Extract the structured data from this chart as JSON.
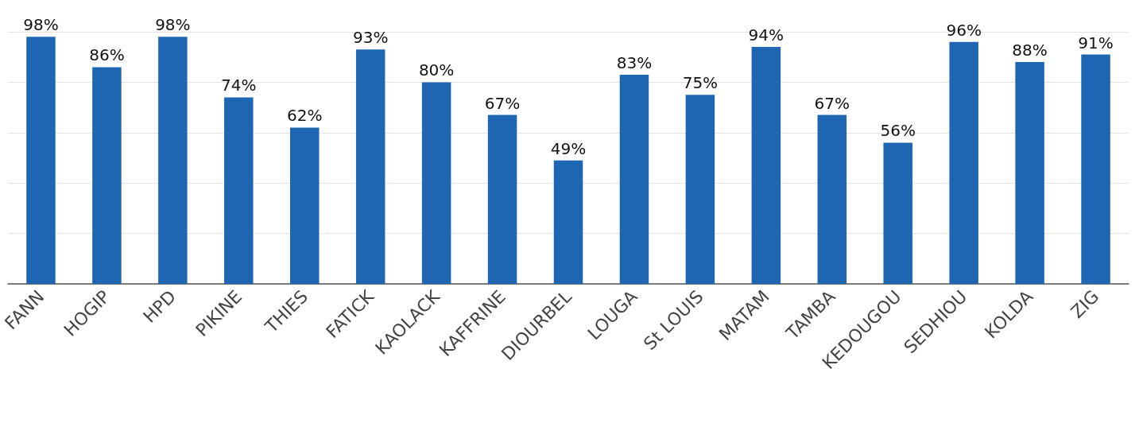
{
  "chart_data": {
    "type": "bar",
    "categories": [
      "FANN",
      "HOGIP",
      "HPD",
      "PIKINE",
      "THIES",
      "FATICK",
      "KAOLACK",
      "KAFFRINE",
      "DIOURBEL",
      "LOUGA",
      "St LOUIS",
      "MATAM",
      "TAMBA",
      "KEDOUGOU",
      "SEDHIOU",
      "KOLDA",
      "ZIG"
    ],
    "values": [
      98,
      86,
      98,
      74,
      62,
      93,
      80,
      67,
      49,
      83,
      75,
      94,
      67,
      56,
      96,
      88,
      91
    ],
    "value_labels": [
      "98%",
      "86%",
      "98%",
      "74%",
      "62%",
      "93%",
      "80%",
      "67%",
      "49%",
      "83%",
      "75%",
      "94%",
      "67%",
      "56%",
      "96%",
      "88%",
      "91%"
    ],
    "color": "#1f66b2",
    "ylim": [
      0,
      100
    ],
    "yticks": [
      {
        "value": 0,
        "label": null
      },
      {
        "value": 20,
        "label": null
      },
      {
        "value": 40,
        "label": null
      },
      {
        "value": 60,
        "label": null
      },
      {
        "value": 80,
        "label": null
      },
      {
        "value": 100,
        "label": null
      }
    ],
    "grid": "y",
    "tick_labels": "x"
  }
}
